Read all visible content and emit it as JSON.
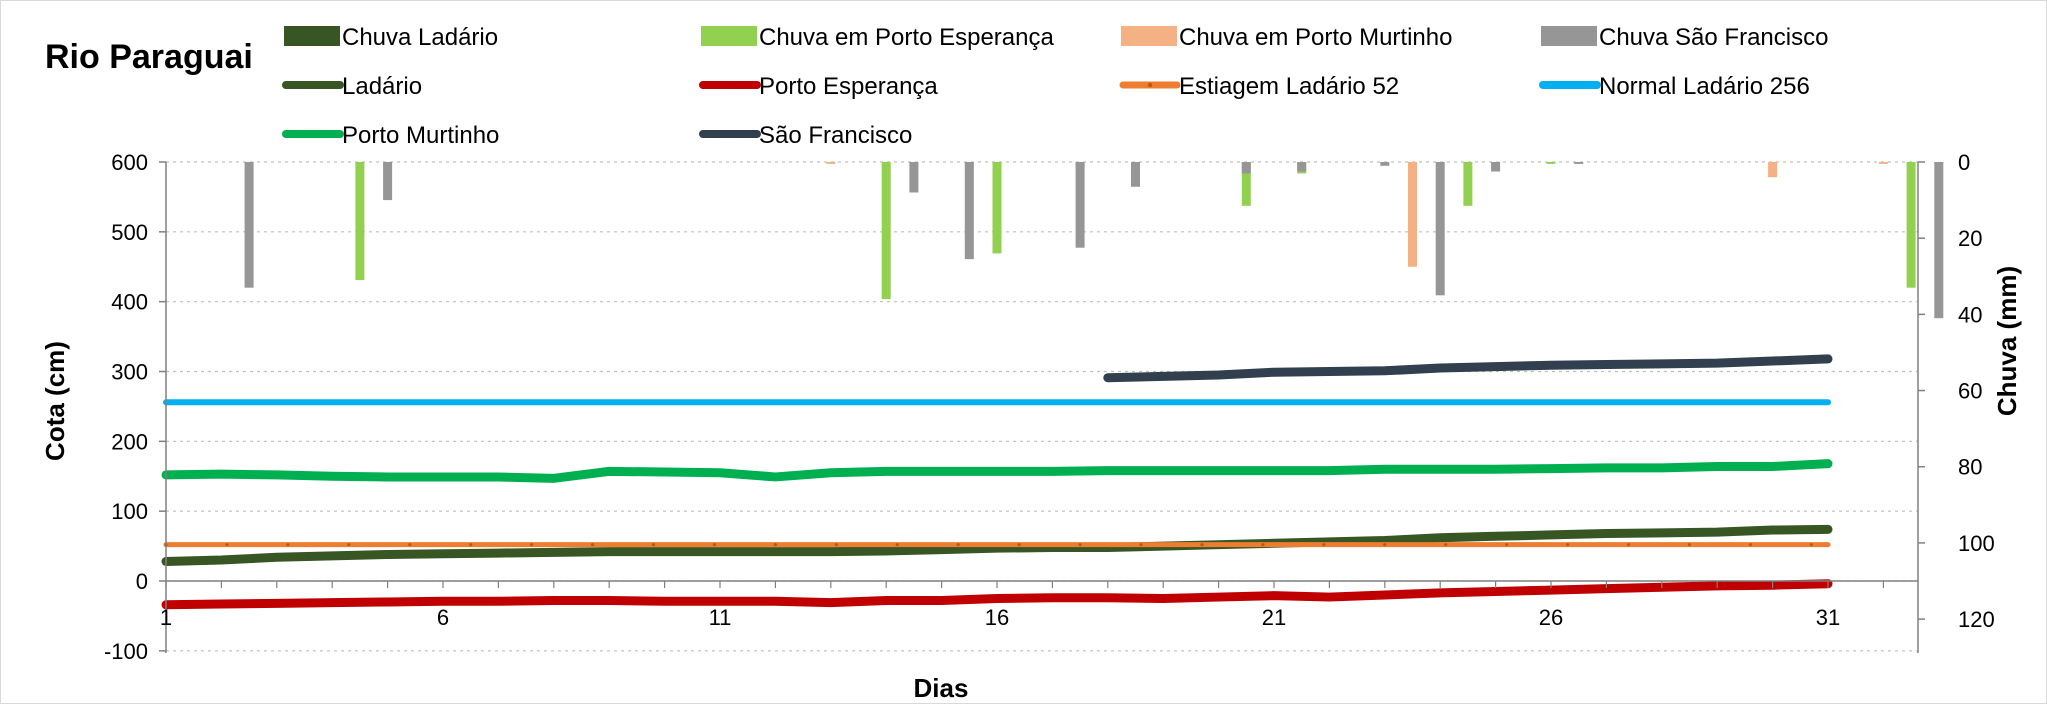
{
  "chart_data": {
    "type": "bar+line",
    "title": "Rio Paraguai",
    "xlabel": "Dias",
    "ylabel_left": "Cota  (cm)",
    "ylabel_right": "Chuva (mm)",
    "ylim_left": [
      -100,
      600
    ],
    "ylim_right_reversed": [
      0,
      120
    ],
    "y_ticks_left": [
      "-100",
      "0",
      "100",
      "200",
      "300",
      "400",
      "500",
      "600"
    ],
    "y_ticks_right": [
      "0",
      "20",
      "40",
      "60",
      "80",
      "100",
      "120"
    ],
    "x_tick_labels": [
      "1",
      "6",
      "11",
      "16",
      "21",
      "26",
      "31"
    ],
    "grid": "horizontal dotted",
    "legend": [
      {
        "label": "Chuva Ladário",
        "color": "#375623",
        "kind": "bar"
      },
      {
        "label": "Chuva em Porto Esperança",
        "color": "#92d050",
        "kind": "bar"
      },
      {
        "label": "Chuva em Porto Murtinho",
        "color": "#f4b183",
        "kind": "bar"
      },
      {
        "label": "Chuva São Francisco",
        "color": "#969696",
        "kind": "bar"
      },
      {
        "label": " Ladário",
        "color": "#375623",
        "kind": "line"
      },
      {
        "label": "Porto Esperança",
        "color": "#c00000",
        "kind": "line"
      },
      {
        "label": "Estiagem Ladário 52",
        "color": "#ed7d31",
        "kind": "line-marker"
      },
      {
        "label": "Normal Ladário 256",
        "color": "#00b0f0",
        "kind": "line"
      },
      {
        "label": "Porto Murtinho",
        "color": "#00b050",
        "kind": "line"
      },
      {
        "label": "São Francisco",
        "color": "#323f4f",
        "kind": "line"
      }
    ],
    "rain_series": [
      {
        "name": "Chuva em Porto Esperança",
        "color": "#92d050",
        "day": [
          4.5,
          14,
          15.5,
          16,
          17.5,
          18.5,
          20.5,
          21.5,
          24.5,
          26,
          32.5
        ],
        "values": [
          31,
          36,
          0.5,
          24,
          1.5,
          4.5,
          11.5,
          3,
          11.5,
          0.5,
          33
        ]
      },
      {
        "name": "Chuva em Porto Murtinho",
        "color": "#f4b183",
        "day": [
          13,
          23.5,
          25,
          30,
          32,
          33
        ],
        "values": [
          0.5,
          27.5,
          0.5,
          4,
          0.5,
          0.5
        ]
      },
      {
        "name": "Chuva São Francisco",
        "color": "#969696",
        "day": [
          2.5,
          5,
          14.5,
          15.5,
          17.5,
          18.5,
          20.5,
          21.5,
          23,
          24,
          25,
          26.5,
          33
        ],
        "values": [
          33,
          10,
          8,
          25.5,
          22.5,
          6.5,
          3,
          2.5,
          1,
          35,
          2.5,
          0.5,
          41
        ]
      }
    ],
    "line_series": [
      {
        "name": "Ladário",
        "color": "#375623",
        "x": [
          1,
          2,
          3,
          4,
          5,
          6,
          7,
          8,
          9,
          10,
          11,
          12,
          13,
          14,
          15,
          16,
          17,
          18,
          19,
          20,
          21,
          22,
          23,
          24,
          25,
          26,
          27,
          28,
          29,
          30,
          31
        ],
        "values": [
          28,
          30,
          34,
          36,
          38,
          39,
          40,
          41,
          42,
          42,
          42,
          42,
          42,
          43,
          45,
          47,
          48,
          48,
          50,
          52,
          54,
          56,
          58,
          62,
          64,
          66,
          68,
          69,
          70,
          73,
          74
        ]
      },
      {
        "name": "Porto Esperança",
        "color": "#c00000",
        "x": [
          1,
          2,
          3,
          4,
          5,
          6,
          7,
          8,
          9,
          10,
          11,
          12,
          13,
          14,
          15,
          16,
          17,
          18,
          19,
          20,
          21,
          22,
          23,
          24,
          25,
          26,
          27,
          28,
          29,
          30,
          31
        ],
        "values": [
          -34,
          -33,
          -32,
          -31,
          -30,
          -29,
          -29,
          -28,
          -28,
          -29,
          -29,
          -29,
          -31,
          -28,
          -28,
          -25,
          -24,
          -24,
          -25,
          -23,
          -21,
          -23,
          -20,
          -17,
          -15,
          -13,
          -11,
          -9,
          -7,
          -6,
          -4
        ]
      },
      {
        "name": "Estiagem Ladário 52",
        "color": "#ed7d31",
        "x": [
          1,
          31
        ],
        "values": [
          52,
          52
        ]
      },
      {
        "name": "Normal Ladário 256",
        "color": "#00b0f0",
        "x": [
          1,
          31
        ],
        "values": [
          256,
          256
        ]
      },
      {
        "name": "Porto Murtinho",
        "color": "#00b050",
        "x": [
          1,
          2,
          3,
          4,
          5,
          6,
          7,
          8,
          9,
          10,
          11,
          12,
          13,
          14,
          15,
          16,
          17,
          18,
          19,
          20,
          21,
          22,
          23,
          24,
          25,
          26,
          27,
          28,
          29,
          30,
          31
        ],
        "values": [
          152,
          153,
          152,
          150,
          149,
          149,
          149,
          147,
          157,
          156,
          155,
          149,
          155,
          157,
          157,
          157,
          157,
          158,
          158,
          158,
          158,
          158,
          160,
          160,
          160,
          161,
          162,
          162,
          164,
          164,
          168
        ]
      },
      {
        "name": "São Francisco",
        "color": "#323f4f",
        "x": [
          18,
          19,
          20,
          21,
          22,
          23,
          24,
          25,
          26,
          27,
          28,
          29,
          30,
          31
        ],
        "values": [
          291,
          293,
          295,
          299,
          300,
          301,
          305,
          307,
          309,
          310,
          311,
          312,
          315,
          318
        ]
      }
    ]
  }
}
